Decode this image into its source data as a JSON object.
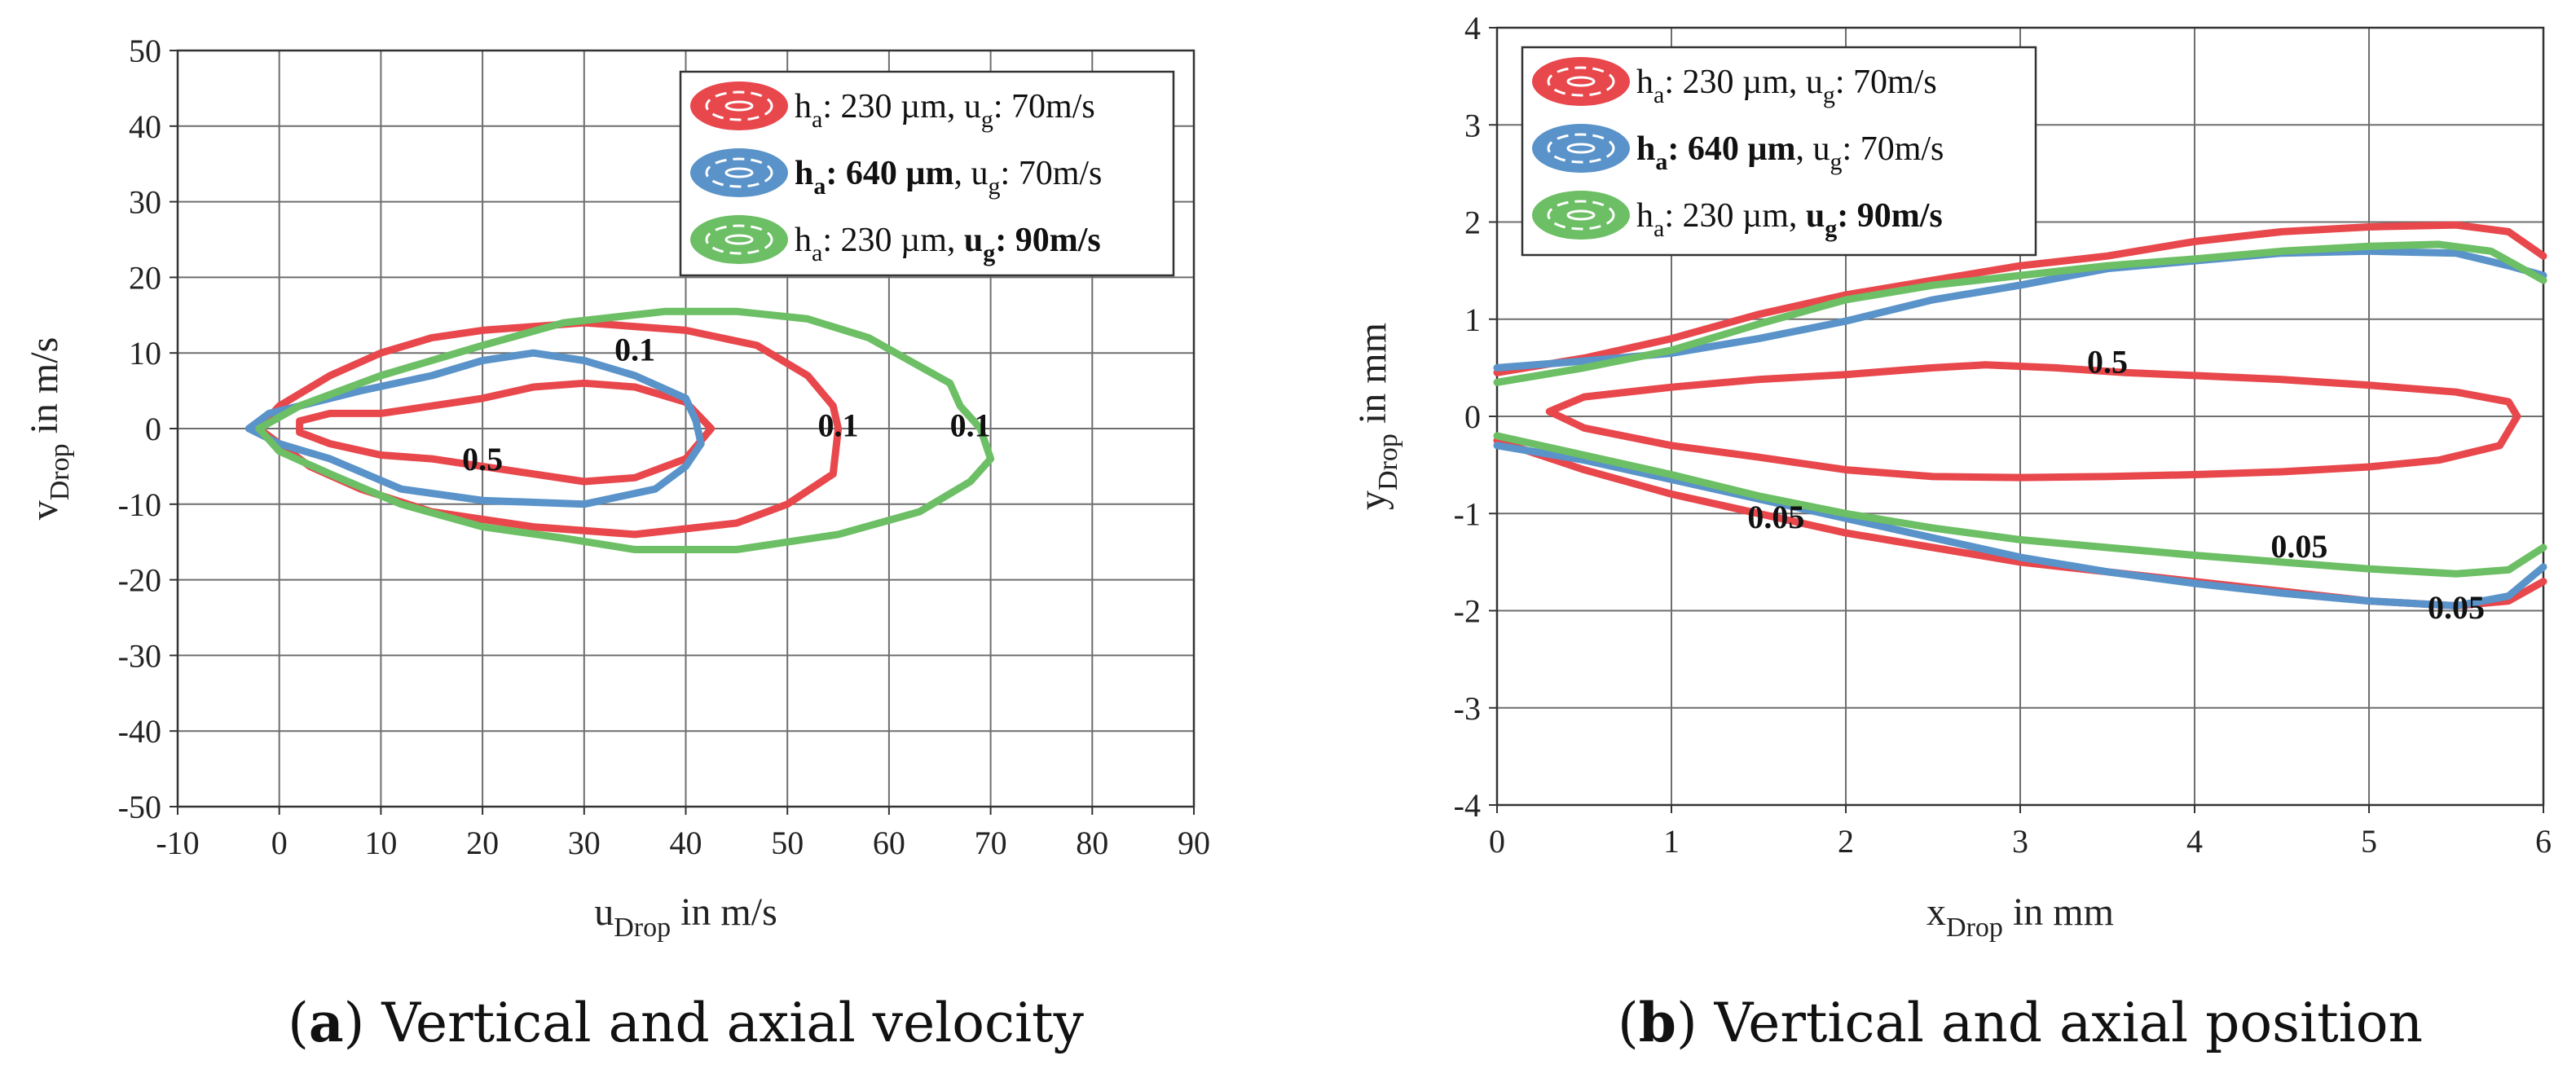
{
  "chart_data": [
    {
      "type": "line",
      "panel_letter": "a",
      "caption": "Vertical and axial velocity",
      "x_label_main": "u",
      "x_label_sub": "Drop",
      "x_label_unit": "in m/s",
      "y_label_main": "v",
      "y_label_sub": "Drop",
      "y_label_unit": "in m/s",
      "xlim": [
        -10,
        90
      ],
      "ylim": [
        -50,
        50
      ],
      "x_ticks": [
        -10,
        0,
        10,
        20,
        30,
        40,
        50,
        60,
        70,
        80,
        90
      ],
      "y_ticks": [
        -50,
        -40,
        -30,
        -20,
        -10,
        0,
        10,
        20,
        30,
        40,
        50
      ],
      "grid": true,
      "legend_position": "top-right",
      "legend": [
        {
          "h": "h",
          "h_sub": "a",
          "h_val": ": 230 µm, ",
          "h_bold": false,
          "u": "u",
          "u_sub": "g",
          "u_val": ": 70m/s",
          "u_bold": false,
          "color": "#e8474c"
        },
        {
          "h": "h",
          "h_sub": "a",
          "h_val": ": 640 µm",
          "h_bold": true,
          "u": ", u",
          "u_sub": "g",
          "u_val": ": 70m/s",
          "u_bold": false,
          "color": "#5a93c9"
        },
        {
          "h": "h",
          "h_sub": "a",
          "h_val": ": 230 µm, ",
          "h_bold": false,
          "u": "u",
          "u_sub": "g",
          "u_val": ": 90m/s",
          "u_bold": true,
          "color": "#6cbf64"
        }
      ],
      "series": [
        {
          "name": "red 0.1",
          "color": "#e8474c",
          "level": "0.1",
          "points": [
            [
              -2,
              0
            ],
            [
              0,
              3
            ],
            [
              5,
              7
            ],
            [
              10,
              10
            ],
            [
              15,
              12
            ],
            [
              20,
              13
            ],
            [
              30,
              14
            ],
            [
              40,
              13
            ],
            [
              47,
              11
            ],
            [
              52,
              7
            ],
            [
              54.5,
              3
            ],
            [
              55,
              0
            ],
            [
              54.5,
              -6
            ],
            [
              50,
              -10
            ],
            [
              45,
              -12.5
            ],
            [
              35,
              -14
            ],
            [
              25,
              -13
            ],
            [
              15,
              -11
            ],
            [
              8,
              -8
            ],
            [
              3,
              -5
            ],
            [
              0,
              -2
            ],
            [
              -2,
              0
            ]
          ]
        },
        {
          "name": "red 0.5",
          "color": "#e8474c",
          "level": "0.5",
          "points": [
            [
              2,
              1
            ],
            [
              5,
              2
            ],
            [
              10,
              2
            ],
            [
              15,
              3
            ],
            [
              20,
              4
            ],
            [
              25,
              5.5
            ],
            [
              30,
              6
            ],
            [
              35,
              5.5
            ],
            [
              40,
              3.5
            ],
            [
              42.5,
              0
            ],
            [
              40,
              -4
            ],
            [
              35,
              -6.5
            ],
            [
              30,
              -7
            ],
            [
              25,
              -6
            ],
            [
              20,
              -5
            ],
            [
              15,
              -4
            ],
            [
              10,
              -3.5
            ],
            [
              5,
              -2
            ],
            [
              2,
              -0.5
            ],
            [
              2,
              1
            ]
          ]
        },
        {
          "name": "blue 0.1",
          "color": "#5a93c9",
          "level": "0.1",
          "points": [
            [
              -3,
              0
            ],
            [
              -1,
              2
            ],
            [
              2,
              3
            ],
            [
              8,
              5
            ],
            [
              15,
              7
            ],
            [
              20,
              9
            ],
            [
              25,
              10
            ],
            [
              30,
              9
            ],
            [
              35,
              7
            ],
            [
              40,
              4
            ],
            [
              41,
              1
            ],
            [
              41.5,
              -2
            ],
            [
              40,
              -5
            ],
            [
              37,
              -8
            ],
            [
              30,
              -10
            ],
            [
              20,
              -9.5
            ],
            [
              12,
              -8
            ],
            [
              5,
              -4
            ],
            [
              0,
              -2
            ],
            [
              -3,
              0
            ]
          ]
        },
        {
          "name": "green 0.1",
          "color": "#6cbf64",
          "level": "0.1",
          "points": [
            [
              -2,
              0
            ],
            [
              2,
              3
            ],
            [
              10,
              7
            ],
            [
              20,
              11
            ],
            [
              28,
              14
            ],
            [
              38,
              15.5
            ],
            [
              45,
              15.5
            ],
            [
              52,
              14.5
            ],
            [
              58,
              12
            ],
            [
              62,
              9
            ],
            [
              66,
              6
            ],
            [
              67,
              3
            ],
            [
              69,
              0
            ],
            [
              70,
              -4
            ],
            [
              68,
              -7
            ],
            [
              63,
              -11
            ],
            [
              55,
              -14
            ],
            [
              45,
              -16
            ],
            [
              35,
              -16
            ],
            [
              28,
              -14.5
            ],
            [
              20,
              -13
            ],
            [
              12,
              -10
            ],
            [
              5,
              -6
            ],
            [
              0,
              -3
            ],
            [
              -2,
              0
            ]
          ]
        }
      ],
      "annotations": [
        {
          "text": "0.1",
          "x": 35,
          "y": 9
        },
        {
          "text": "0.5",
          "x": 20,
          "y": -5.5
        },
        {
          "text": "0.1",
          "x": 55,
          "y": -1
        },
        {
          "text": "0.1",
          "x": 68,
          "y": -1
        }
      ]
    },
    {
      "type": "line",
      "panel_letter": "b",
      "caption": "Vertical and axial position",
      "x_label_main": "x",
      "x_label_sub": "Drop",
      "x_label_unit": "in mm",
      "y_label_main": "y",
      "y_label_sub": "Drop",
      "y_label_unit": "in mm",
      "xlim": [
        0,
        6
      ],
      "ylim": [
        -4,
        4
      ],
      "x_ticks": [
        0,
        1,
        2,
        3,
        4,
        5,
        6
      ],
      "y_ticks": [
        -4,
        -3,
        -2,
        -1,
        0,
        1,
        2,
        3,
        4
      ],
      "grid": true,
      "legend_position": "top-left",
      "legend": [
        {
          "h": "h",
          "h_sub": "a",
          "h_val": ": 230 µm, ",
          "h_bold": false,
          "u": "u",
          "u_sub": "g",
          "u_val": ": 70m/s",
          "u_bold": false,
          "color": "#e8474c"
        },
        {
          "h": "h",
          "h_sub": "a",
          "h_val": ": 640 µm",
          "h_bold": true,
          "u": ", u",
          "u_sub": "g",
          "u_val": ": 70m/s",
          "u_bold": false,
          "color": "#5a93c9"
        },
        {
          "h": "h",
          "h_sub": "a",
          "h_val": ": 230 µm, ",
          "h_bold": false,
          "u": "u",
          "u_sub": "g",
          "u_val": ": 90m/s",
          "u_bold": true,
          "color": "#6cbf64"
        }
      ],
      "series": [
        {
          "name": "red upper 0.05",
          "color": "#e8474c",
          "level": "0.05",
          "points": [
            [
              0,
              0.45
            ],
            [
              0.5,
              0.6
            ],
            [
              1,
              0.8
            ],
            [
              1.5,
              1.05
            ],
            [
              2,
              1.25
            ],
            [
              2.5,
              1.4
            ],
            [
              3,
              1.55
            ],
            [
              3.5,
              1.65
            ],
            [
              4,
              1.8
            ],
            [
              4.5,
              1.9
            ],
            [
              5,
              1.95
            ],
            [
              5.5,
              1.97
            ],
            [
              5.8,
              1.9
            ],
            [
              6,
              1.65
            ]
          ]
        },
        {
          "name": "red lower 0.05",
          "color": "#e8474c",
          "level": "0.05",
          "points": [
            [
              0,
              -0.25
            ],
            [
              0.5,
              -0.55
            ],
            [
              1,
              -0.8
            ],
            [
              1.5,
              -1.0
            ],
            [
              2,
              -1.2
            ],
            [
              2.5,
              -1.35
            ],
            [
              3,
              -1.5
            ],
            [
              3.5,
              -1.6
            ],
            [
              4,
              -1.7
            ],
            [
              4.5,
              -1.8
            ],
            [
              5,
              -1.9
            ],
            [
              5.5,
              -1.95
            ],
            [
              5.8,
              -1.9
            ],
            [
              6,
              -1.7
            ]
          ]
        },
        {
          "name": "red 0.5",
          "color": "#e8474c",
          "level": "0.5",
          "points": [
            [
              0.3,
              0.05
            ],
            [
              0.5,
              0.2
            ],
            [
              1,
              0.3
            ],
            [
              1.5,
              0.38
            ],
            [
              2,
              0.43
            ],
            [
              2.5,
              0.5
            ],
            [
              2.8,
              0.53
            ],
            [
              3.2,
              0.5
            ],
            [
              3.6,
              0.45
            ],
            [
              4,
              0.42
            ],
            [
              4.5,
              0.38
            ],
            [
              5,
              0.32
            ],
            [
              5.5,
              0.25
            ],
            [
              5.8,
              0.15
            ],
            [
              5.85,
              0
            ],
            [
              5.75,
              -0.3
            ],
            [
              5.4,
              -0.45
            ],
            [
              5,
              -0.52
            ],
            [
              4.5,
              -0.57
            ],
            [
              4,
              -0.6
            ],
            [
              3.5,
              -0.62
            ],
            [
              3,
              -0.63
            ],
            [
              2.5,
              -0.62
            ],
            [
              2,
              -0.55
            ],
            [
              1.5,
              -0.42
            ],
            [
              1,
              -0.3
            ],
            [
              0.5,
              -0.12
            ],
            [
              0.3,
              0.05
            ]
          ]
        },
        {
          "name": "blue upper 0.05",
          "color": "#5a93c9",
          "level": "0.05",
          "points": [
            [
              0,
              0.5
            ],
            [
              0.5,
              0.57
            ],
            [
              1,
              0.65
            ],
            [
              1.5,
              0.8
            ],
            [
              2,
              0.98
            ],
            [
              2.5,
              1.2
            ],
            [
              3,
              1.35
            ],
            [
              3.5,
              1.52
            ],
            [
              4,
              1.6
            ],
            [
              4.5,
              1.68
            ],
            [
              5,
              1.7
            ],
            [
              5.5,
              1.68
            ],
            [
              5.8,
              1.55
            ],
            [
              6,
              1.45
            ]
          ]
        },
        {
          "name": "blue lower 0.05",
          "color": "#5a93c9",
          "level": "0.05",
          "points": [
            [
              0,
              -0.3
            ],
            [
              0.5,
              -0.45
            ],
            [
              1,
              -0.65
            ],
            [
              1.5,
              -0.85
            ],
            [
              2,
              -1.05
            ],
            [
              2.5,
              -1.25
            ],
            [
              3,
              -1.45
            ],
            [
              3.5,
              -1.6
            ],
            [
              4,
              -1.72
            ],
            [
              4.5,
              -1.82
            ],
            [
              5,
              -1.9
            ],
            [
              5.5,
              -1.95
            ],
            [
              5.8,
              -1.85
            ],
            [
              6,
              -1.55
            ]
          ]
        },
        {
          "name": "green upper 0.05",
          "color": "#6cbf64",
          "level": "0.05",
          "points": [
            [
              0,
              0.35
            ],
            [
              0.5,
              0.5
            ],
            [
              1,
              0.68
            ],
            [
              1.5,
              0.95
            ],
            [
              2,
              1.2
            ],
            [
              2.5,
              1.35
            ],
            [
              3,
              1.45
            ],
            [
              3.5,
              1.55
            ],
            [
              4,
              1.62
            ],
            [
              4.5,
              1.7
            ],
            [
              5,
              1.75
            ],
            [
              5.4,
              1.77
            ],
            [
              5.7,
              1.7
            ],
            [
              6,
              1.4
            ]
          ]
        },
        {
          "name": "green lower 0.05",
          "color": "#6cbf64",
          "level": "0.05",
          "points": [
            [
              0,
              -0.2
            ],
            [
              0.5,
              -0.4
            ],
            [
              1,
              -0.6
            ],
            [
              1.5,
              -0.82
            ],
            [
              2,
              -1.0
            ],
            [
              2.5,
              -1.15
            ],
            [
              3,
              -1.27
            ],
            [
              3.5,
              -1.35
            ],
            [
              4,
              -1.43
            ],
            [
              4.5,
              -1.5
            ],
            [
              5,
              -1.57
            ],
            [
              5.5,
              -1.62
            ],
            [
              5.8,
              -1.58
            ],
            [
              6,
              -1.35
            ]
          ]
        }
      ],
      "annotations": [
        {
          "text": "0.5",
          "x": 3.5,
          "y": 0.45
        },
        {
          "text": "0.05",
          "x": 1.6,
          "y": -1.15
        },
        {
          "text": "0.05",
          "x": 4.6,
          "y": -1.45
        },
        {
          "text": "0.05",
          "x": 5.5,
          "y": -2.08
        }
      ]
    }
  ]
}
